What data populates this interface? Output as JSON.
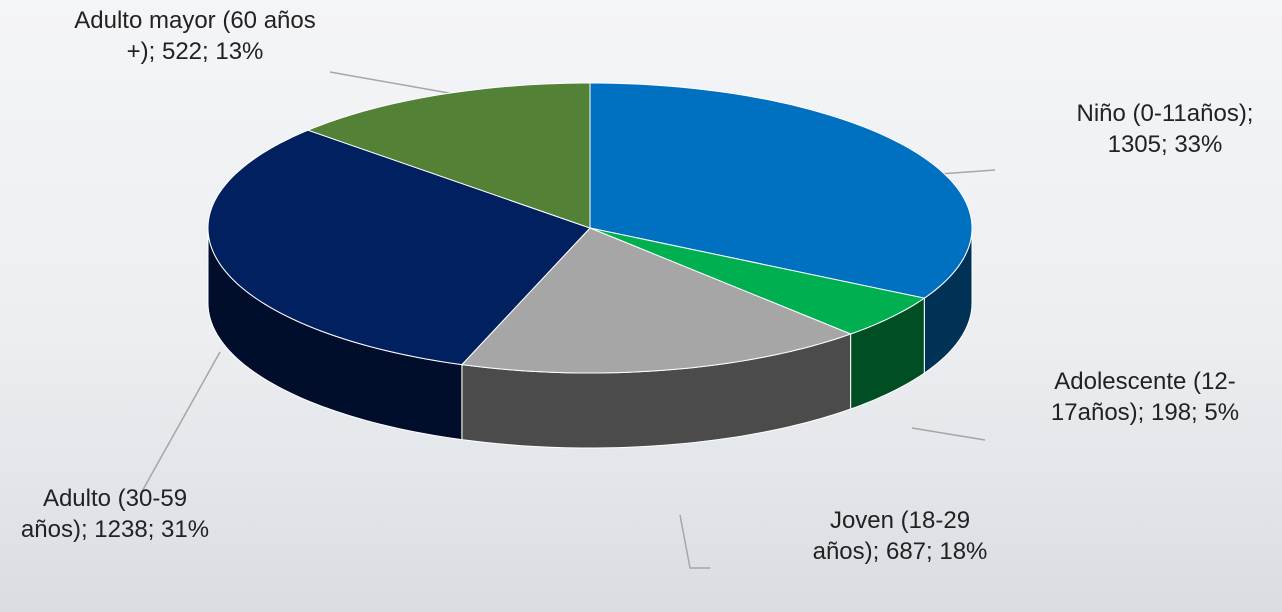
{
  "chart_data": {
    "type": "pie3d",
    "categories": [
      "Niño (0-11años);",
      "Adolescente (12-17años);",
      "Joven (18-29 años);",
      "Adulto (30-59 años);",
      "Adulto mayor (60 años +);"
    ],
    "values": [
      1305,
      198,
      687,
      1238,
      522
    ],
    "value_labels": [
      "1305; 33%",
      "198; 5%",
      "687; 18%",
      "1238; 31%",
      "522; 13%"
    ],
    "colors": [
      "#0070c0",
      "#00b050",
      "#a6a6a6",
      "#002060",
      "#538135"
    ]
  }
}
